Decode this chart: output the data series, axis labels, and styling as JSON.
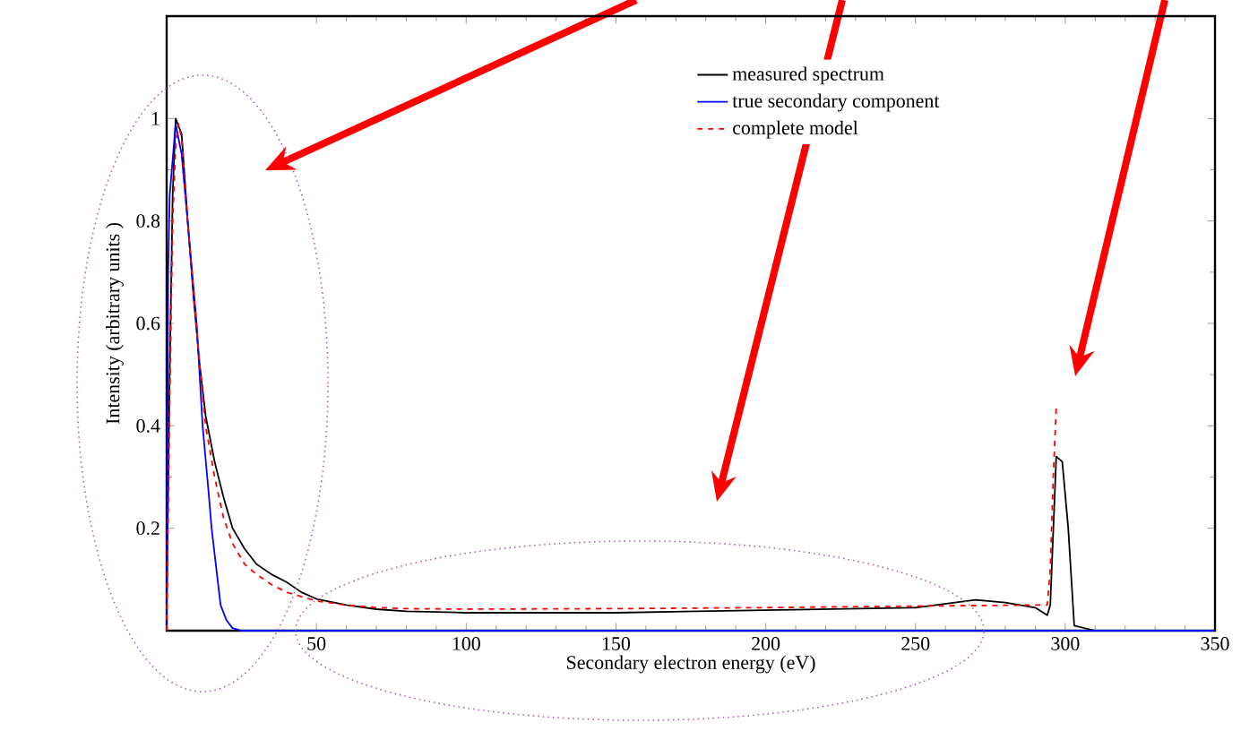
{
  "chart_data": {
    "type": "line",
    "xlabel": "Secondary electron energy (eV)",
    "ylabel": "Intensity (arbitrary units )",
    "xlim": [
      0,
      350
    ],
    "ylim": [
      0,
      1.2
    ],
    "xticks": [
      50,
      100,
      150,
      200,
      250,
      300,
      350
    ],
    "yticks": [
      0.2,
      0.4,
      0.6,
      0.8,
      1
    ],
    "legend": "top",
    "grid": false,
    "series": [
      {
        "name": "measured spectrum",
        "color": "#000000",
        "line_style": "solid",
        "x": [
          0,
          1,
          2,
          3,
          5,
          7,
          9,
          11,
          13,
          16,
          19,
          22,
          26,
          30,
          35,
          40,
          45,
          50,
          60,
          70,
          80,
          100,
          150,
          200,
          250,
          270,
          280,
          290,
          294,
          295,
          297,
          299,
          301,
          303,
          310,
          350
        ],
        "values": [
          0.05,
          0.5,
          0.85,
          1.0,
          0.97,
          0.8,
          0.65,
          0.52,
          0.42,
          0.33,
          0.26,
          0.2,
          0.16,
          0.13,
          0.11,
          0.095,
          0.075,
          0.062,
          0.05,
          0.042,
          0.038,
          0.035,
          0.035,
          0.04,
          0.045,
          0.06,
          0.055,
          0.045,
          0.03,
          0.05,
          0.34,
          0.33,
          0.2,
          0.01,
          0,
          0
        ]
      },
      {
        "name": "true secondary component",
        "color": "#0000ff",
        "line_style": "solid",
        "x": [
          0,
          0.5,
          1,
          2,
          3,
          5,
          7,
          10,
          12,
          14,
          15,
          17,
          18,
          20,
          22,
          25,
          350
        ],
        "values": [
          0,
          0.7,
          0.85,
          0.92,
          0.99,
          0.93,
          0.8,
          0.6,
          0.4,
          0.27,
          0.2,
          0.1,
          0.05,
          0.02,
          0.005,
          0,
          0
        ]
      },
      {
        "name": "complete model",
        "color": "#ff0000",
        "line_style": "dashed",
        "x": [
          0,
          1,
          2,
          3,
          4,
          5,
          7,
          9,
          11,
          13,
          16,
          19,
          22,
          26,
          30,
          35,
          40,
          50,
          60,
          70,
          80,
          100,
          150,
          200,
          250,
          290,
          294,
          295,
          296,
          297
        ],
        "values": [
          0,
          0.45,
          0.8,
          0.95,
          0.99,
          0.96,
          0.8,
          0.66,
          0.52,
          0.4,
          0.3,
          0.22,
          0.17,
          0.13,
          0.11,
          0.09,
          0.075,
          0.058,
          0.05,
          0.045,
          0.043,
          0.042,
          0.043,
          0.045,
          0.048,
          0.05,
          0.05,
          0.12,
          0.3,
          0.435
        ]
      }
    ]
  }
}
